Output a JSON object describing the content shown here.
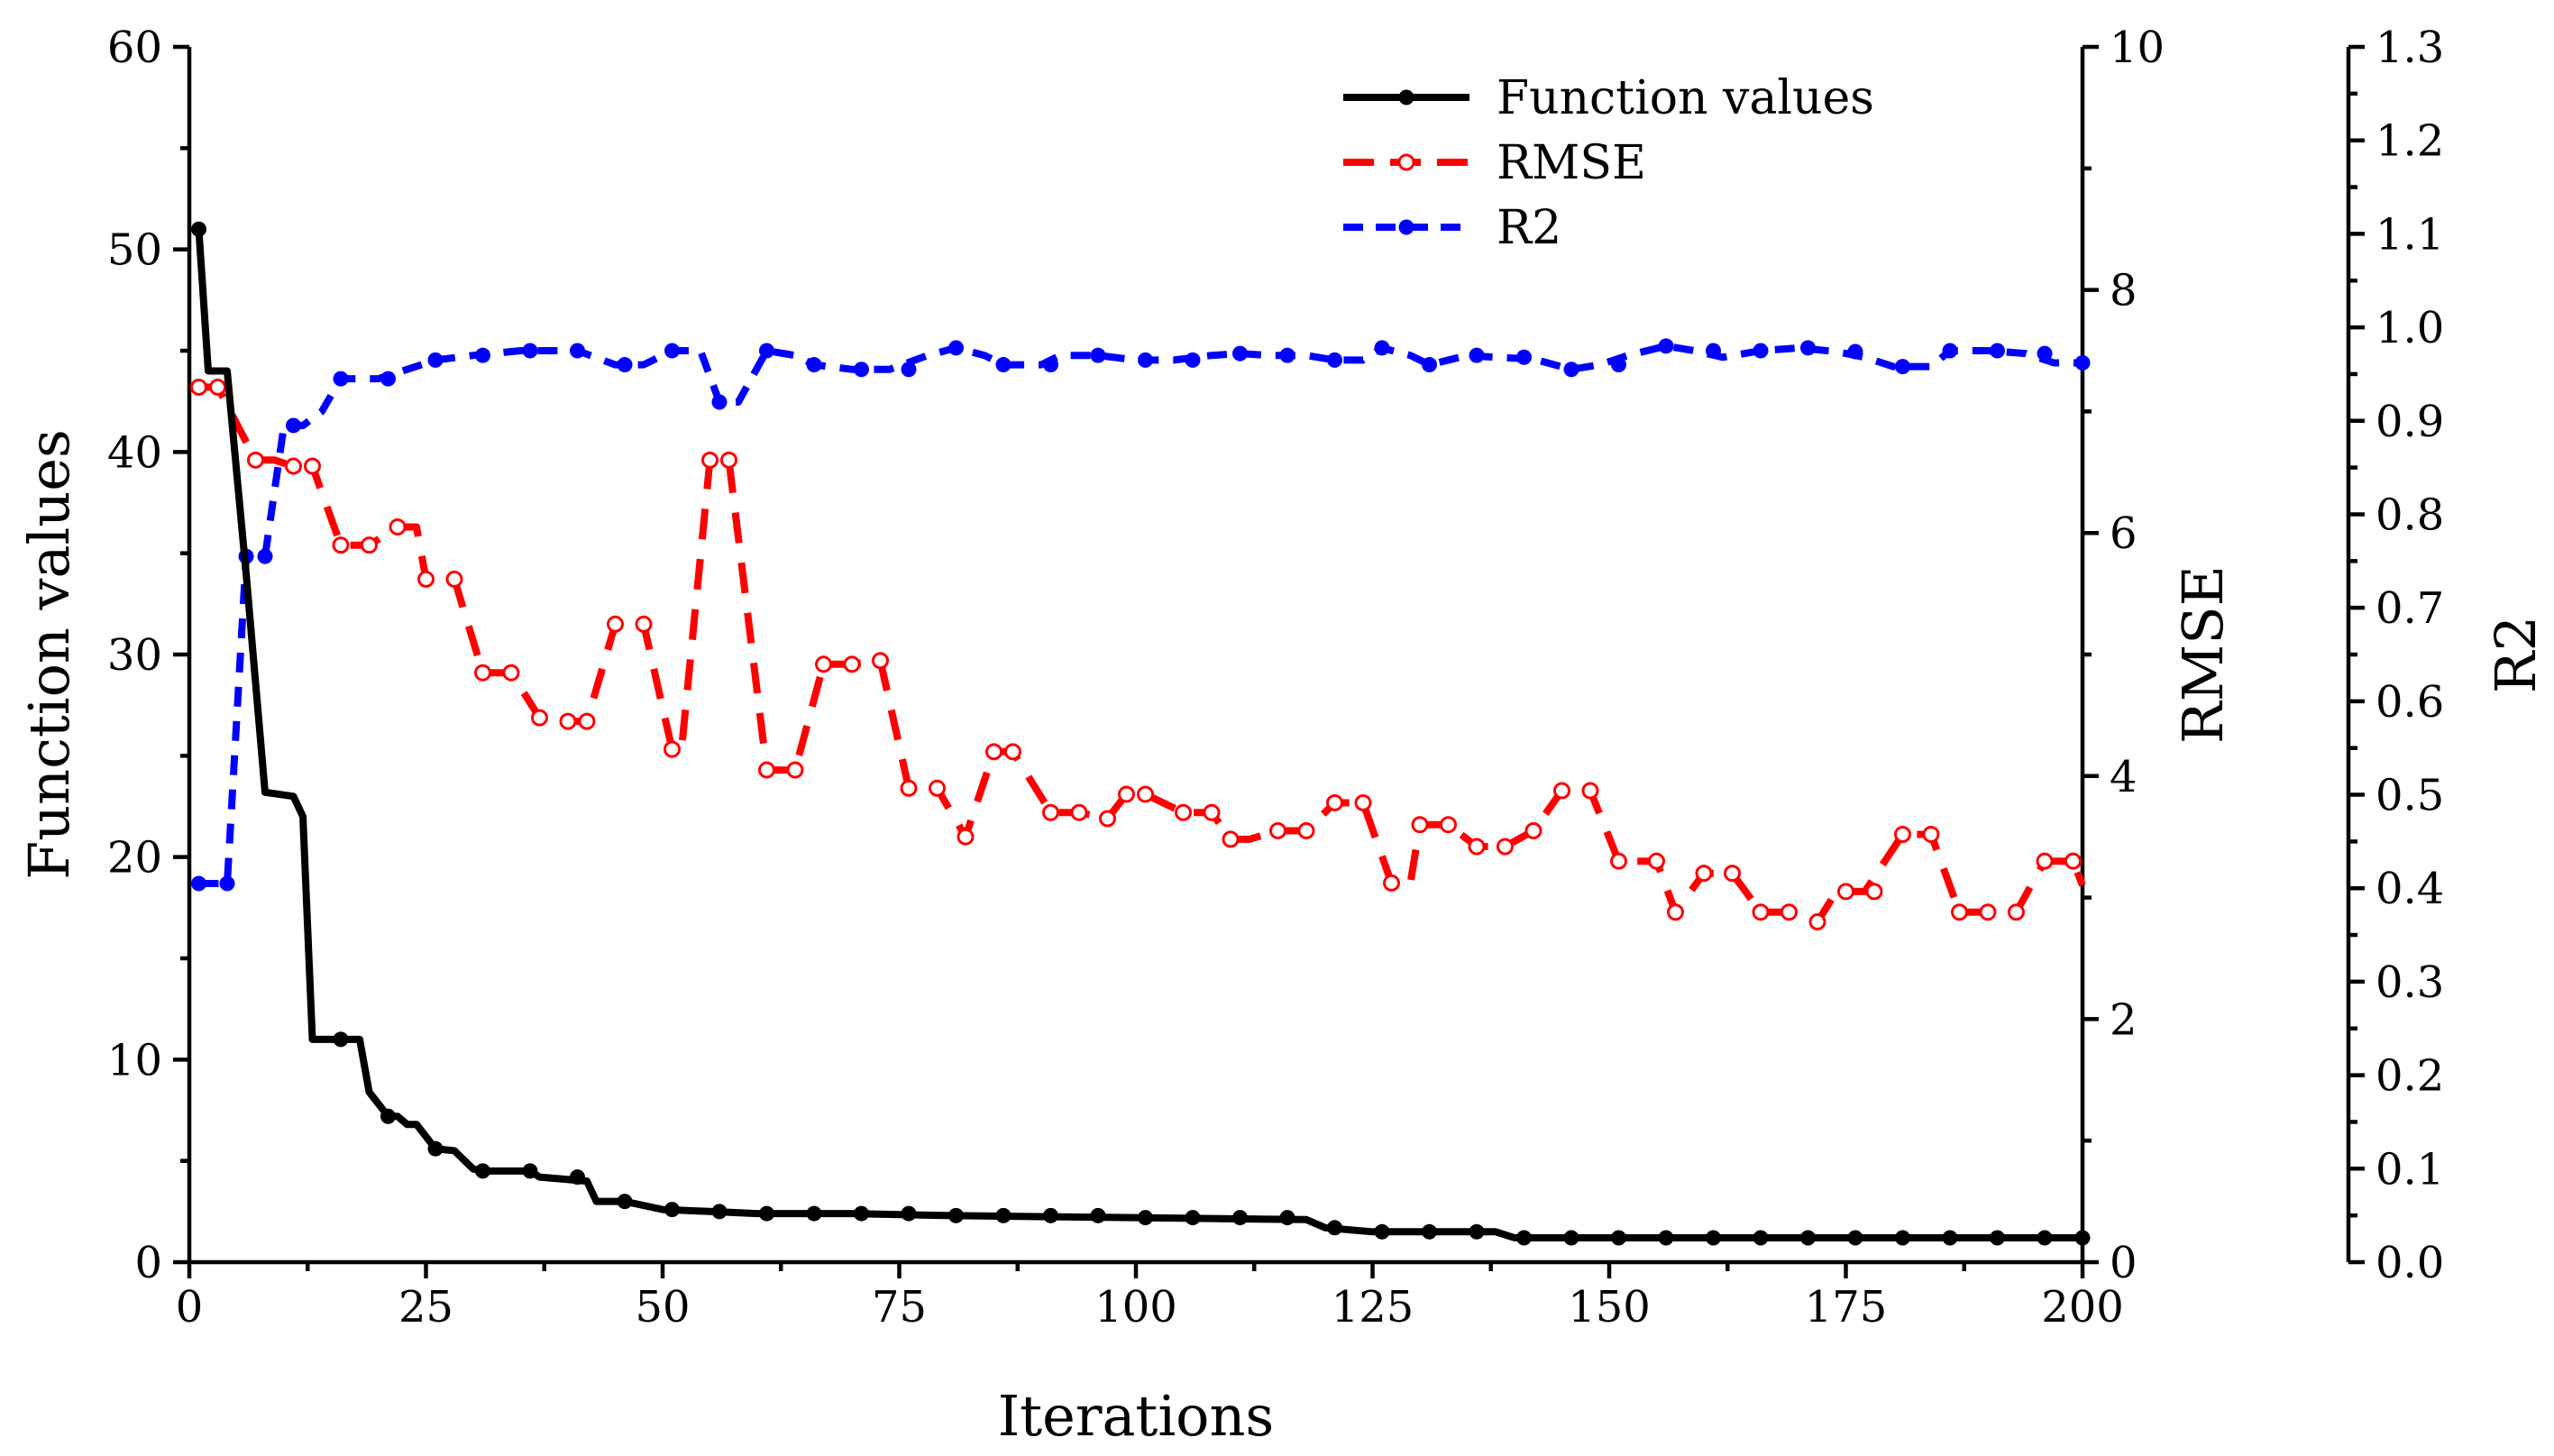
{
  "chart_data": {
    "type": "line",
    "xlabel": "Iterations",
    "x_ticks": [
      0,
      25,
      50,
      75,
      100,
      125,
      150,
      175,
      200
    ],
    "xlim": [
      0,
      200
    ],
    "axes": {
      "left": {
        "label": "Function values",
        "ylim": [
          0,
          60
        ],
        "ticks": [
          0,
          10,
          20,
          30,
          40,
          50,
          60
        ],
        "tick_labels": [
          "0",
          "10",
          "20",
          "30",
          "40",
          "50",
          "60"
        ]
      },
      "right": {
        "label": "RMSE",
        "ylim": [
          0,
          10
        ],
        "ticks": [
          0,
          2,
          4,
          6,
          8,
          10
        ],
        "tick_labels": [
          "0",
          "2",
          "4",
          "6",
          "8",
          "10"
        ]
      },
      "far_right": {
        "label": "R2",
        "ylim": [
          0,
          1.3
        ],
        "ticks": [
          0,
          0.1,
          0.2,
          0.3,
          0.4,
          0.5,
          0.6,
          0.7,
          0.8,
          0.9,
          1.0,
          1.1,
          1.2,
          1.3
        ],
        "tick_labels": [
          "0.0",
          "0.1",
          "0.2",
          "0.3",
          "0.4",
          "0.5",
          "0.6",
          "0.7",
          "0.8",
          "0.9",
          "1.0",
          "1.1",
          "1.2",
          "1.3"
        ]
      }
    },
    "legend": {
      "placement": "top-center",
      "entries": [
        "Function values",
        "RMSE",
        "R2"
      ]
    },
    "series": [
      {
        "name": "Function values",
        "axis": "left",
        "color": "#000000",
        "style": "solid",
        "marker": "filled-circle",
        "points": [
          [
            1,
            51
          ],
          [
            2,
            44
          ],
          [
            4,
            44
          ],
          [
            6,
            34
          ],
          [
            8,
            23.2
          ],
          [
            11,
            23
          ],
          [
            12,
            22
          ],
          [
            13,
            11
          ],
          [
            16,
            11
          ],
          [
            18,
            11
          ],
          [
            19,
            8.4
          ],
          [
            21,
            7.2
          ],
          [
            22,
            7.2
          ],
          [
            23,
            6.8
          ],
          [
            24,
            6.8
          ],
          [
            26,
            5.6
          ],
          [
            28,
            5.5
          ],
          [
            30,
            4.6
          ],
          [
            31,
            4.5
          ],
          [
            36,
            4.5
          ],
          [
            37,
            4.2
          ],
          [
            42,
            4.0
          ],
          [
            43,
            3
          ],
          [
            46,
            3
          ],
          [
            50,
            2.6
          ],
          [
            55,
            2.5
          ],
          [
            60,
            2.4
          ],
          [
            70,
            2.4
          ],
          [
            80,
            2.3
          ],
          [
            100,
            2.2
          ],
          [
            118,
            2.1
          ],
          [
            120,
            1.7
          ],
          [
            125,
            1.5
          ],
          [
            138,
            1.5
          ],
          [
            140,
            1.2
          ],
          [
            160,
            1.2
          ],
          [
            200,
            1.2
          ]
        ],
        "markers": [
          1,
          16,
          21,
          26,
          31,
          36,
          41,
          46,
          51,
          56,
          61,
          66,
          71,
          76,
          81,
          86,
          91,
          96,
          101,
          106,
          111,
          116,
          121,
          126,
          131,
          136,
          141,
          146,
          151,
          156,
          161,
          166,
          171,
          176,
          181,
          186,
          191,
          196,
          200
        ]
      },
      {
        "name": "RMSE",
        "axis": "right",
        "color": "#ff0000",
        "style": "dashed",
        "marker": "open-circle",
        "points": [
          [
            1,
            7.2
          ],
          [
            3,
            7.2
          ],
          [
            7,
            6.6
          ],
          [
            9,
            6.6
          ],
          [
            11,
            6.55
          ],
          [
            13,
            6.55
          ],
          [
            16,
            5.9
          ],
          [
            19,
            5.9
          ],
          [
            22,
            6.05
          ],
          [
            24,
            6.05
          ],
          [
            25,
            5.62
          ],
          [
            28,
            5.62
          ],
          [
            31,
            4.85
          ],
          [
            34,
            4.85
          ],
          [
            37,
            4.48
          ],
          [
            40,
            4.45
          ],
          [
            42,
            4.45
          ],
          [
            45,
            5.25
          ],
          [
            48,
            5.25
          ],
          [
            51,
            4.22
          ],
          [
            52,
            4.22
          ],
          [
            55,
            6.6
          ],
          [
            57,
            6.6
          ],
          [
            61,
            4.05
          ],
          [
            64,
            4.05
          ],
          [
            67,
            4.92
          ],
          [
            70,
            4.92
          ],
          [
            73,
            4.95
          ],
          [
            76,
            3.9
          ],
          [
            79,
            3.9
          ],
          [
            82,
            3.5
          ],
          [
            85,
            4.2
          ],
          [
            87,
            4.2
          ],
          [
            91,
            3.7
          ],
          [
            94,
            3.7
          ],
          [
            97,
            3.65
          ],
          [
            99,
            3.85
          ],
          [
            101,
            3.85
          ],
          [
            105,
            3.7
          ],
          [
            108,
            3.7
          ],
          [
            110,
            3.48
          ],
          [
            112,
            3.48
          ],
          [
            115,
            3.55
          ],
          [
            118,
            3.55
          ],
          [
            121,
            3.78
          ],
          [
            124,
            3.78
          ],
          [
            127,
            3.12
          ],
          [
            129,
            3.12
          ],
          [
            130,
            3.6
          ],
          [
            133,
            3.6
          ],
          [
            136,
            3.42
          ],
          [
            139,
            3.42
          ],
          [
            142,
            3.55
          ],
          [
            145,
            3.88
          ],
          [
            148,
            3.88
          ],
          [
            151,
            3.3
          ],
          [
            155,
            3.3
          ],
          [
            157,
            2.88
          ],
          [
            160,
            3.2
          ],
          [
            163,
            3.2
          ],
          [
            166,
            2.88
          ],
          [
            169,
            2.88
          ],
          [
            172,
            2.8
          ],
          [
            174,
            3.05
          ],
          [
            177,
            3.05
          ],
          [
            181,
            3.52
          ],
          [
            184,
            3.52
          ],
          [
            187,
            2.88
          ],
          [
            190,
            2.88
          ],
          [
            193,
            2.88
          ],
          [
            196,
            3.3
          ],
          [
            199,
            3.3
          ],
          [
            200,
            3.1
          ]
        ],
        "markers": [
          1,
          3,
          7,
          11,
          13,
          16,
          19,
          22,
          25,
          28,
          31,
          34,
          37,
          40,
          42,
          45,
          48,
          51,
          55,
          57,
          61,
          64,
          67,
          70,
          73,
          76,
          79,
          82,
          85,
          87,
          91,
          94,
          97,
          99,
          101,
          105,
          108,
          110,
          115,
          118,
          121,
          124,
          127,
          130,
          133,
          136,
          139,
          142,
          145,
          148,
          151,
          155,
          157,
          160,
          163,
          166,
          169,
          172,
          175,
          178,
          181,
          184,
          187,
          190,
          193,
          196,
          199
        ]
      },
      {
        "name": "R2",
        "axis": "far_right",
        "color": "#0000ff",
        "style": "dashed",
        "marker": "filled-circle",
        "points": [
          [
            1,
            0.405
          ],
          [
            4,
            0.405
          ],
          [
            6,
            0.755
          ],
          [
            8,
            0.755
          ],
          [
            10,
            0.895
          ],
          [
            12,
            0.895
          ],
          [
            14,
            0.91
          ],
          [
            16,
            0.945
          ],
          [
            20,
            0.945
          ],
          [
            26,
            0.965
          ],
          [
            30,
            0.97
          ],
          [
            35,
            0.975
          ],
          [
            41,
            0.975
          ],
          [
            45,
            0.96
          ],
          [
            48,
            0.96
          ],
          [
            51,
            0.975
          ],
          [
            54,
            0.975
          ],
          [
            56,
            0.92
          ],
          [
            58,
            0.92
          ],
          [
            61,
            0.975
          ],
          [
            64,
            0.97
          ],
          [
            66,
            0.96
          ],
          [
            70,
            0.955
          ],
          [
            74,
            0.955
          ],
          [
            78,
            0.97
          ],
          [
            81,
            0.978
          ],
          [
            84,
            0.97
          ],
          [
            86,
            0.96
          ],
          [
            90,
            0.96
          ],
          [
            92,
            0.97
          ],
          [
            96,
            0.97
          ],
          [
            100,
            0.965
          ],
          [
            104,
            0.965
          ],
          [
            108,
            0.97
          ],
          [
            111,
            0.972
          ],
          [
            114,
            0.97
          ],
          [
            118,
            0.97
          ],
          [
            121,
            0.965
          ],
          [
            124,
            0.965
          ],
          [
            126,
            0.978
          ],
          [
            129,
            0.97
          ],
          [
            131,
            0.96
          ],
          [
            135,
            0.97
          ],
          [
            138,
            0.968
          ],
          [
            142,
            0.966
          ],
          [
            146,
            0.955
          ],
          [
            149,
            0.96
          ],
          [
            152,
            0.97
          ],
          [
            156,
            0.98
          ],
          [
            159,
            0.975
          ],
          [
            162,
            0.968
          ],
          [
            166,
            0.975
          ],
          [
            170,
            0.978
          ],
          [
            174,
            0.974
          ],
          [
            177,
            0.968
          ],
          [
            180,
            0.958
          ],
          [
            184,
            0.958
          ],
          [
            186,
            0.975
          ],
          [
            190,
            0.975
          ],
          [
            194,
            0.972
          ],
          [
            197,
            0.962
          ],
          [
            200,
            0.962
          ]
        ],
        "markers": [
          1,
          4,
          6,
          8,
          11,
          16,
          21,
          26,
          31,
          36,
          41,
          46,
          51,
          56,
          61,
          66,
          71,
          76,
          81,
          86,
          91,
          96,
          101,
          106,
          111,
          116,
          121,
          126,
          131,
          136,
          141,
          146,
          151,
          156,
          161,
          166,
          171,
          176,
          181,
          186,
          191,
          196,
          200
        ]
      }
    ]
  }
}
